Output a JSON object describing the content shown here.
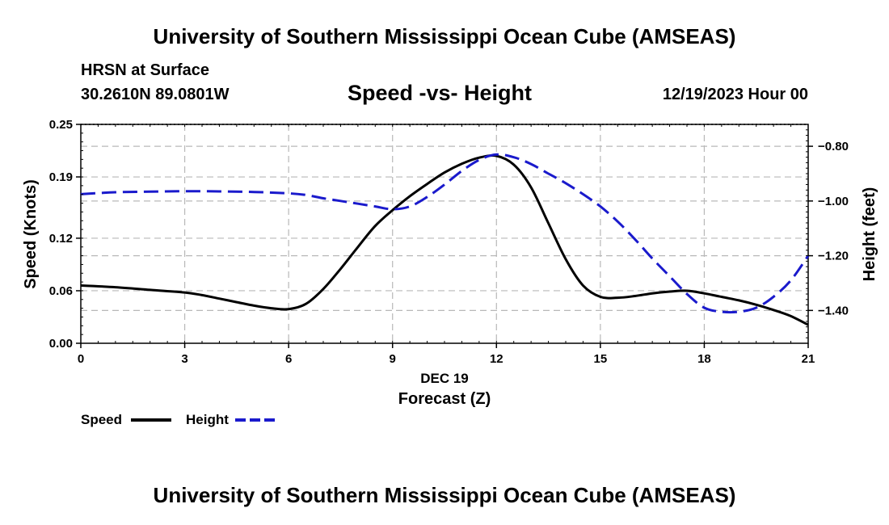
{
  "page": {
    "title_top": "University of Southern Mississippi Ocean Cube (AMSEAS)",
    "title_bottom": "University of Southern Mississippi Ocean Cube (AMSEAS)",
    "station": "HRSN at Surface",
    "coords": "30.2610N  89.0801W",
    "date": "12/19/2023 Hour 00"
  },
  "chart_data": {
    "type": "line",
    "title": "Speed -vs- Height",
    "xlabel": "Forecast (Z)",
    "xlabel_date": "DEC 19",
    "ylabel_left": "Speed (Knots)",
    "ylabel_right": "Height (feet)",
    "xlim": [
      0,
      21
    ],
    "ylim_left": [
      0,
      0.25
    ],
    "ylim_right": [
      -1.52,
      -0.72
    ],
    "x_ticks": [
      "0",
      "3",
      "6",
      "9",
      "12",
      "15",
      "18",
      "21"
    ],
    "y_left_ticks": [
      "0.00",
      "0.06",
      "0.12",
      "0.19",
      "0.25"
    ],
    "y_right_ticks": [
      "-1.40",
      "-1.20",
      "-1.00",
      "-0.80"
    ],
    "grid": true,
    "legend_position": "bottom-left",
    "series": [
      {
        "name": "Speed",
        "axis": "left",
        "color": "#000000",
        "style": "solid",
        "x": [
          0,
          1,
          2,
          3,
          3.5,
          4,
          4.5,
          5,
          5.5,
          6,
          6.5,
          7,
          7.5,
          8,
          8.5,
          9,
          9.5,
          10,
          10.5,
          11,
          11.5,
          12,
          12.5,
          13,
          13.5,
          14,
          14.5,
          15,
          15.5,
          16,
          16.5,
          17,
          17.5,
          18,
          18.5,
          19,
          19.5,
          20,
          20.5,
          21
        ],
        "values": [
          0.066,
          0.064,
          0.061,
          0.058,
          0.055,
          0.051,
          0.047,
          0.043,
          0.04,
          0.039,
          0.045,
          0.062,
          0.085,
          0.11,
          0.134,
          0.152,
          0.168,
          0.182,
          0.195,
          0.205,
          0.212,
          0.214,
          0.204,
          0.178,
          0.137,
          0.096,
          0.066,
          0.053,
          0.052,
          0.054,
          0.057,
          0.059,
          0.06,
          0.057,
          0.053,
          0.049,
          0.044,
          0.038,
          0.031,
          0.021
        ]
      },
      {
        "name": "Height",
        "axis": "right",
        "color": "#1a1acc",
        "style": "dashed",
        "x": [
          0,
          1,
          2,
          3,
          4,
          5,
          6,
          6.5,
          7,
          7.5,
          8,
          8.5,
          9,
          9.5,
          10,
          10.5,
          11,
          11.5,
          12,
          12.5,
          13,
          13.5,
          14,
          14.5,
          15,
          15.5,
          16,
          16.5,
          17,
          17.5,
          18,
          18.5,
          19,
          19.5,
          20,
          20.5,
          21
        ],
        "values": [
          -0.975,
          -0.968,
          -0.966,
          -0.964,
          -0.965,
          -0.967,
          -0.972,
          -0.978,
          -0.99,
          -1.0,
          -1.01,
          -1.02,
          -1.03,
          -1.02,
          -0.985,
          -0.94,
          -0.89,
          -0.85,
          -0.83,
          -0.84,
          -0.865,
          -0.9,
          -0.935,
          -0.975,
          -1.02,
          -1.075,
          -1.14,
          -1.21,
          -1.275,
          -1.34,
          -1.39,
          -1.405,
          -1.405,
          -1.39,
          -1.35,
          -1.29,
          -1.2
        ]
      }
    ]
  }
}
